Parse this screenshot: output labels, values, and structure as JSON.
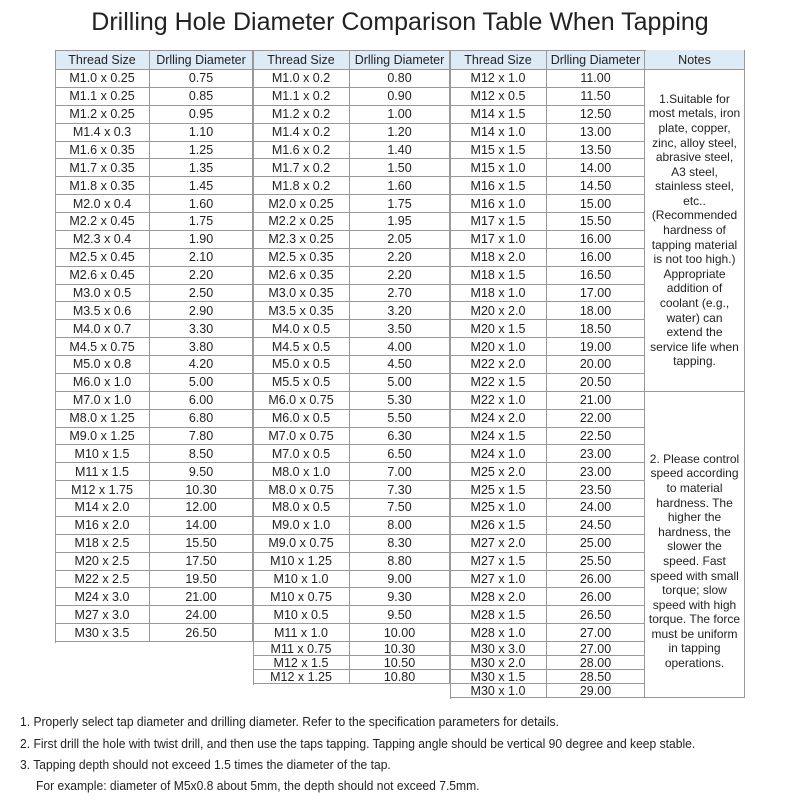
{
  "title": "Drilling Hole Diameter Comparison Table When Tapping",
  "headers": [
    "Thread Size",
    "Drlling Diameter",
    "Thread Size",
    "Drlling Diameter",
    "Thread Size",
    "Drlling Diameter",
    "Notes"
  ],
  "groups": [
    [
      [
        "M1.0 x 0.25",
        "0.75"
      ],
      [
        "M1.1 x 0.25",
        "0.85"
      ],
      [
        "M1.2 x 0.25",
        "0.95"
      ],
      [
        "M1.4 x 0.3",
        "1.10"
      ],
      [
        "M1.6 x 0.35",
        "1.25"
      ],
      [
        "M1.7 x 0.35",
        "1.35"
      ],
      [
        "M1.8 x 0.35",
        "1.45"
      ],
      [
        "M2.0 x 0.4",
        "1.60"
      ],
      [
        "M2.2 x 0.45",
        "1.75"
      ],
      [
        "M2.3 x 0.4",
        "1.90"
      ],
      [
        "M2.5 x 0.45",
        "2.10"
      ],
      [
        "M2.6 x 0.45",
        "2.20"
      ],
      [
        "M3.0 x 0.5",
        "2.50"
      ],
      [
        "M3.5 x 0.6",
        "2.90"
      ],
      [
        "M4.0 x 0.7",
        "3.30"
      ],
      [
        "M4.5 x 0.75",
        "3.80"
      ],
      [
        "M5.0 x 0.8",
        "4.20"
      ],
      [
        "M6.0 x 1.0",
        "5.00"
      ],
      [
        "M7.0 x 1.0",
        "6.00"
      ],
      [
        "M8.0 x 1.25",
        "6.80"
      ],
      [
        "M9.0 x 1.25",
        "7.80"
      ],
      [
        "M10 x 1.5",
        "8.50"
      ],
      [
        "M11 x 1.5",
        "9.50"
      ],
      [
        "M12 x 1.75",
        "10.30"
      ],
      [
        "M14 x 2.0",
        "12.00"
      ],
      [
        "M16 x 2.0",
        "14.00"
      ],
      [
        "M18 x 2.5",
        "15.50"
      ],
      [
        "M20 x 2.5",
        "17.50"
      ],
      [
        "M22 x 2.5",
        "19.50"
      ],
      [
        "M24 x 3.0",
        "21.00"
      ],
      [
        "M27 x 3.0",
        "24.00"
      ],
      [
        "M30 x 3.5",
        "26.50"
      ]
    ],
    [
      [
        "M1.0 x 0.2",
        "0.80"
      ],
      [
        "M1.1 x 0.2",
        "0.90"
      ],
      [
        "M1.2 x 0.2",
        "1.00"
      ],
      [
        "M1.4 x 0.2",
        "1.20"
      ],
      [
        "M1.6 x 0.2",
        "1.40"
      ],
      [
        "M1.7 x 0.2",
        "1.50"
      ],
      [
        "M1.8 x 0.2",
        "1.60"
      ],
      [
        "M2.0 x 0.25",
        "1.75"
      ],
      [
        "M2.2 x 0.25",
        "1.95"
      ],
      [
        "M2.3 x 0.25",
        "2.05"
      ],
      [
        "M2.5 x 0.35",
        "2.20"
      ],
      [
        "M2.6 x 0.35",
        "2.20"
      ],
      [
        "M3.0 x 0.35",
        "2.70"
      ],
      [
        "M3.5 x 0.35",
        "3.20"
      ],
      [
        "M4.0 x 0.5",
        "3.50"
      ],
      [
        "M4.5 x 0.5",
        "4.00"
      ],
      [
        "M5.0 x 0.5",
        "4.50"
      ],
      [
        "M5.5 x 0.5",
        "5.00"
      ],
      [
        "M6.0 x 0.75",
        "5.30"
      ],
      [
        "M6.0 x 0.5",
        "5.50"
      ],
      [
        "M7.0 x 0.75",
        "6.30"
      ],
      [
        "M7.0 x 0.5",
        "6.50"
      ],
      [
        "M8.0 x 1.0",
        "7.00"
      ],
      [
        "M8.0 x 0.75",
        "7.30"
      ],
      [
        "M8.0 x 0.5",
        "7.50"
      ],
      [
        "M9.0 x 1.0",
        "8.00"
      ],
      [
        "M9.0 x 0.75",
        "8.30"
      ],
      [
        "M10 x 1.25",
        "8.80"
      ],
      [
        "M10 x 1.0",
        "9.00"
      ],
      [
        "M10 x 0.75",
        "9.30"
      ],
      [
        "M10 x 0.5",
        "9.50"
      ],
      [
        "M11 x 1.0",
        "10.00"
      ],
      [
        "M11 x 0.75",
        "10.30"
      ],
      [
        "M12 x 1.5",
        "10.50"
      ],
      [
        "M12 x 1.25",
        "10.80"
      ]
    ],
    [
      [
        "M12 x 1.0",
        "11.00"
      ],
      [
        "M12 x 0.5",
        "11.50"
      ],
      [
        "M14 x 1.5",
        "12.50"
      ],
      [
        "M14 x 1.0",
        "13.00"
      ],
      [
        "M15 x 1.5",
        "13.50"
      ],
      [
        "M15 x 1.0",
        "14.00"
      ],
      [
        "M16 x 1.5",
        "14.50"
      ],
      [
        "M16 x 1.0",
        "15.00"
      ],
      [
        "M17 x 1.5",
        "15.50"
      ],
      [
        "M17 x 1.0",
        "16.00"
      ],
      [
        "M18 x 2.0",
        "16.00"
      ],
      [
        "M18 x 1.5",
        "16.50"
      ],
      [
        "M18 x 1.0",
        "17.00"
      ],
      [
        "M20 x 2.0",
        "18.00"
      ],
      [
        "M20 x 1.5",
        "18.50"
      ],
      [
        "M20 x 1.0",
        "19.00"
      ],
      [
        "M22 x 2.0",
        "20.00"
      ],
      [
        "M22 x 1.5",
        "20.50"
      ],
      [
        "M22 x 1.0",
        "21.00"
      ],
      [
        "M24 x 2.0",
        "22.00"
      ],
      [
        "M24 x 1.5",
        "22.50"
      ],
      [
        "M24 x 1.0",
        "23.00"
      ],
      [
        "M25 x 2.0",
        "23.00"
      ],
      [
        "M25 x 1.5",
        "23.50"
      ],
      [
        "M25 x 1.0",
        "24.00"
      ],
      [
        "M26 x 1.5",
        "24.50"
      ],
      [
        "M27 x 2.0",
        "25.00"
      ],
      [
        "M27 x 1.5",
        "25.50"
      ],
      [
        "M27 x 1.0",
        "26.00"
      ],
      [
        "M28 x 2.0",
        "26.00"
      ],
      [
        "M28 x 1.5",
        "26.50"
      ],
      [
        "M28 x 1.0",
        "27.00"
      ],
      [
        "M30 x 3.0",
        "27.00"
      ],
      [
        "M30 x 2.0",
        "28.00"
      ],
      [
        "M30 x 1.5",
        "28.50"
      ],
      [
        "M30 x 1.0",
        "29.00"
      ]
    ]
  ],
  "notes": [
    "1.Suitable for most metals, iron plate, copper, zinc, alloy steel, abrasive steel, A3 steel, stainless steel, etc..(Recommended hardness of tapping material is not too high.) Appropriate addition of coolant (e.g., water) can extend the service life when tapping.",
    "2. Please control speed according to material hardness. The higher the hardness, the slower the speed. Fast speed with small torque; slow speed with high torque. The force must be uniform in tapping operations."
  ],
  "footnotes": [
    "1. Properly select tap diameter and drilling diameter. Refer to the specification parameters for details.",
    "2. First drill the hole with twist drill, and then use the taps tapping. Tapping angle should be vertical 90 degree and keep stable.",
    "3. Tapping depth should not exceed 1.5 times the diameter of the tap.",
    "For example: diameter of M5x0.8 about 5mm, the depth should not exceed 7.5mm."
  ],
  "colors": {
    "header_bg": "#dcebf5",
    "border": "#999999"
  }
}
